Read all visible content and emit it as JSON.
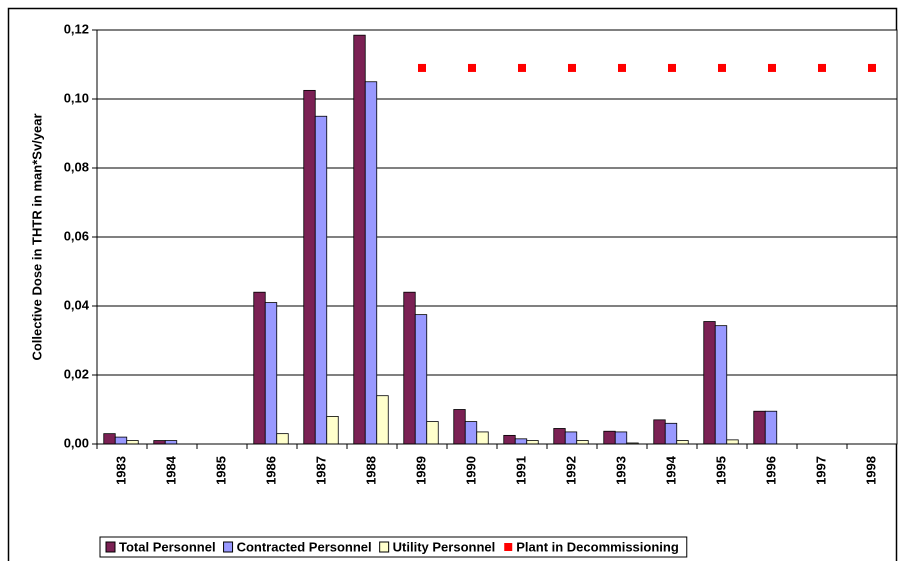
{
  "chart_data": {
    "type": "bar",
    "y_label": "Collective Dose in THTR in man*Sv/year",
    "categories": [
      "1983",
      "1984",
      "1985",
      "1986",
      "1987",
      "1988",
      "1989",
      "1990",
      "1991",
      "1992",
      "1993",
      "1994",
      "1995",
      "1996",
      "1997",
      "1998"
    ],
    "series": [
      {
        "name": "Total Personnel",
        "color": "#7b2154",
        "type": "bar",
        "values": [
          0.003,
          0.001,
          0,
          0.044,
          0.1025,
          0.1185,
          0.044,
          0.01,
          0.0025,
          0.0045,
          0.0037,
          0.007,
          0.0355,
          0.0095,
          0,
          0
        ]
      },
      {
        "name": "Contracted Personnel",
        "color": "#9999ff",
        "type": "bar",
        "values": [
          0.002,
          0.001,
          0,
          0.041,
          0.095,
          0.105,
          0.0375,
          0.0065,
          0.0015,
          0.0035,
          0.0035,
          0.006,
          0.0343,
          0.0095,
          0,
          0
        ]
      },
      {
        "name": "Utility Personnel",
        "color": "#ffffcc",
        "type": "bar",
        "values": [
          0.001,
          0,
          0,
          0.003,
          0.008,
          0.014,
          0.0065,
          0.0035,
          0.001,
          0.001,
          0.0003,
          0.001,
          0.0012,
          0,
          0,
          0
        ]
      },
      {
        "name": "Plant in Decommissioning",
        "color": "#ff0000",
        "type": "scatter",
        "values": [
          null,
          null,
          null,
          null,
          null,
          null,
          0.109,
          0.109,
          0.109,
          0.109,
          0.109,
          0.109,
          0.109,
          0.109,
          0.109,
          0.109
        ]
      }
    ],
    "ylim": [
      0,
      0.12
    ],
    "yticks": [
      {
        "value": 0,
        "label": "0,00"
      },
      {
        "value": 0.02,
        "label": "0,02"
      },
      {
        "value": 0.04,
        "label": "0,04"
      },
      {
        "value": 0.06,
        "label": "0,06"
      },
      {
        "value": 0.08,
        "label": "0,08"
      },
      {
        "value": 0.1,
        "label": "0,10"
      },
      {
        "value": 0.12,
        "label": "0,12"
      }
    ],
    "grid": true,
    "legend": "bottom"
  }
}
